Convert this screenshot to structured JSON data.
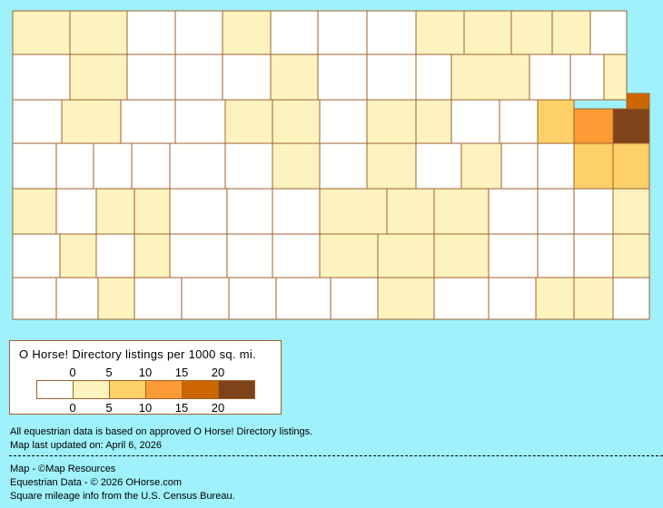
{
  "colors": {
    "background": "#9ff1fb",
    "border": "#a0622d",
    "levels": [
      "#fffffe",
      "#fdf3bf",
      "#fdd068",
      "#fc9b35",
      "#cc6600",
      "#7e4318"
    ]
  },
  "legend": {
    "title": "O Horse! Directory listings per 1000 sq. mi.",
    "ticks_top": [
      "0",
      "5",
      "10",
      "15",
      "20"
    ],
    "ticks_bottom": [
      "0",
      "5",
      "10",
      "15",
      "20"
    ]
  },
  "county_levels": [
    [
      1,
      1,
      0,
      0,
      1,
      0,
      0,
      0,
      1,
      1,
      1,
      1,
      0
    ],
    [
      0,
      1,
      0,
      0,
      0,
      1,
      0,
      0,
      0,
      1,
      0,
      0,
      1,
      4
    ],
    [
      0,
      1,
      0,
      0,
      1,
      1,
      0,
      1,
      1,
      0,
      0,
      2,
      3,
      5
    ],
    [
      0,
      0,
      0,
      0,
      0,
      0,
      1,
      0,
      1,
      0,
      1,
      0,
      0,
      2,
      2
    ],
    [
      1,
      0,
      1,
      1,
      0,
      0,
      0,
      1,
      1,
      1,
      0,
      0,
      0,
      1
    ],
    [
      0,
      1,
      0,
      1,
      0,
      0,
      0,
      1,
      1,
      1,
      0,
      0,
      0,
      1
    ],
    [
      0,
      0,
      1,
      0,
      0,
      0,
      0,
      0,
      1,
      0,
      0,
      1,
      1,
      0
    ]
  ],
  "notes": {
    "line1": "All equestrian data is based on approved O Horse! Directory listings.",
    "line2": "Map last updated on: April 6, 2026",
    "credit1": "Map - ©Map Resources",
    "credit2": "Equestrian Data - © 2026 OHorse.com",
    "credit3": "Square mileage info from the U.S. Census Bureau."
  }
}
